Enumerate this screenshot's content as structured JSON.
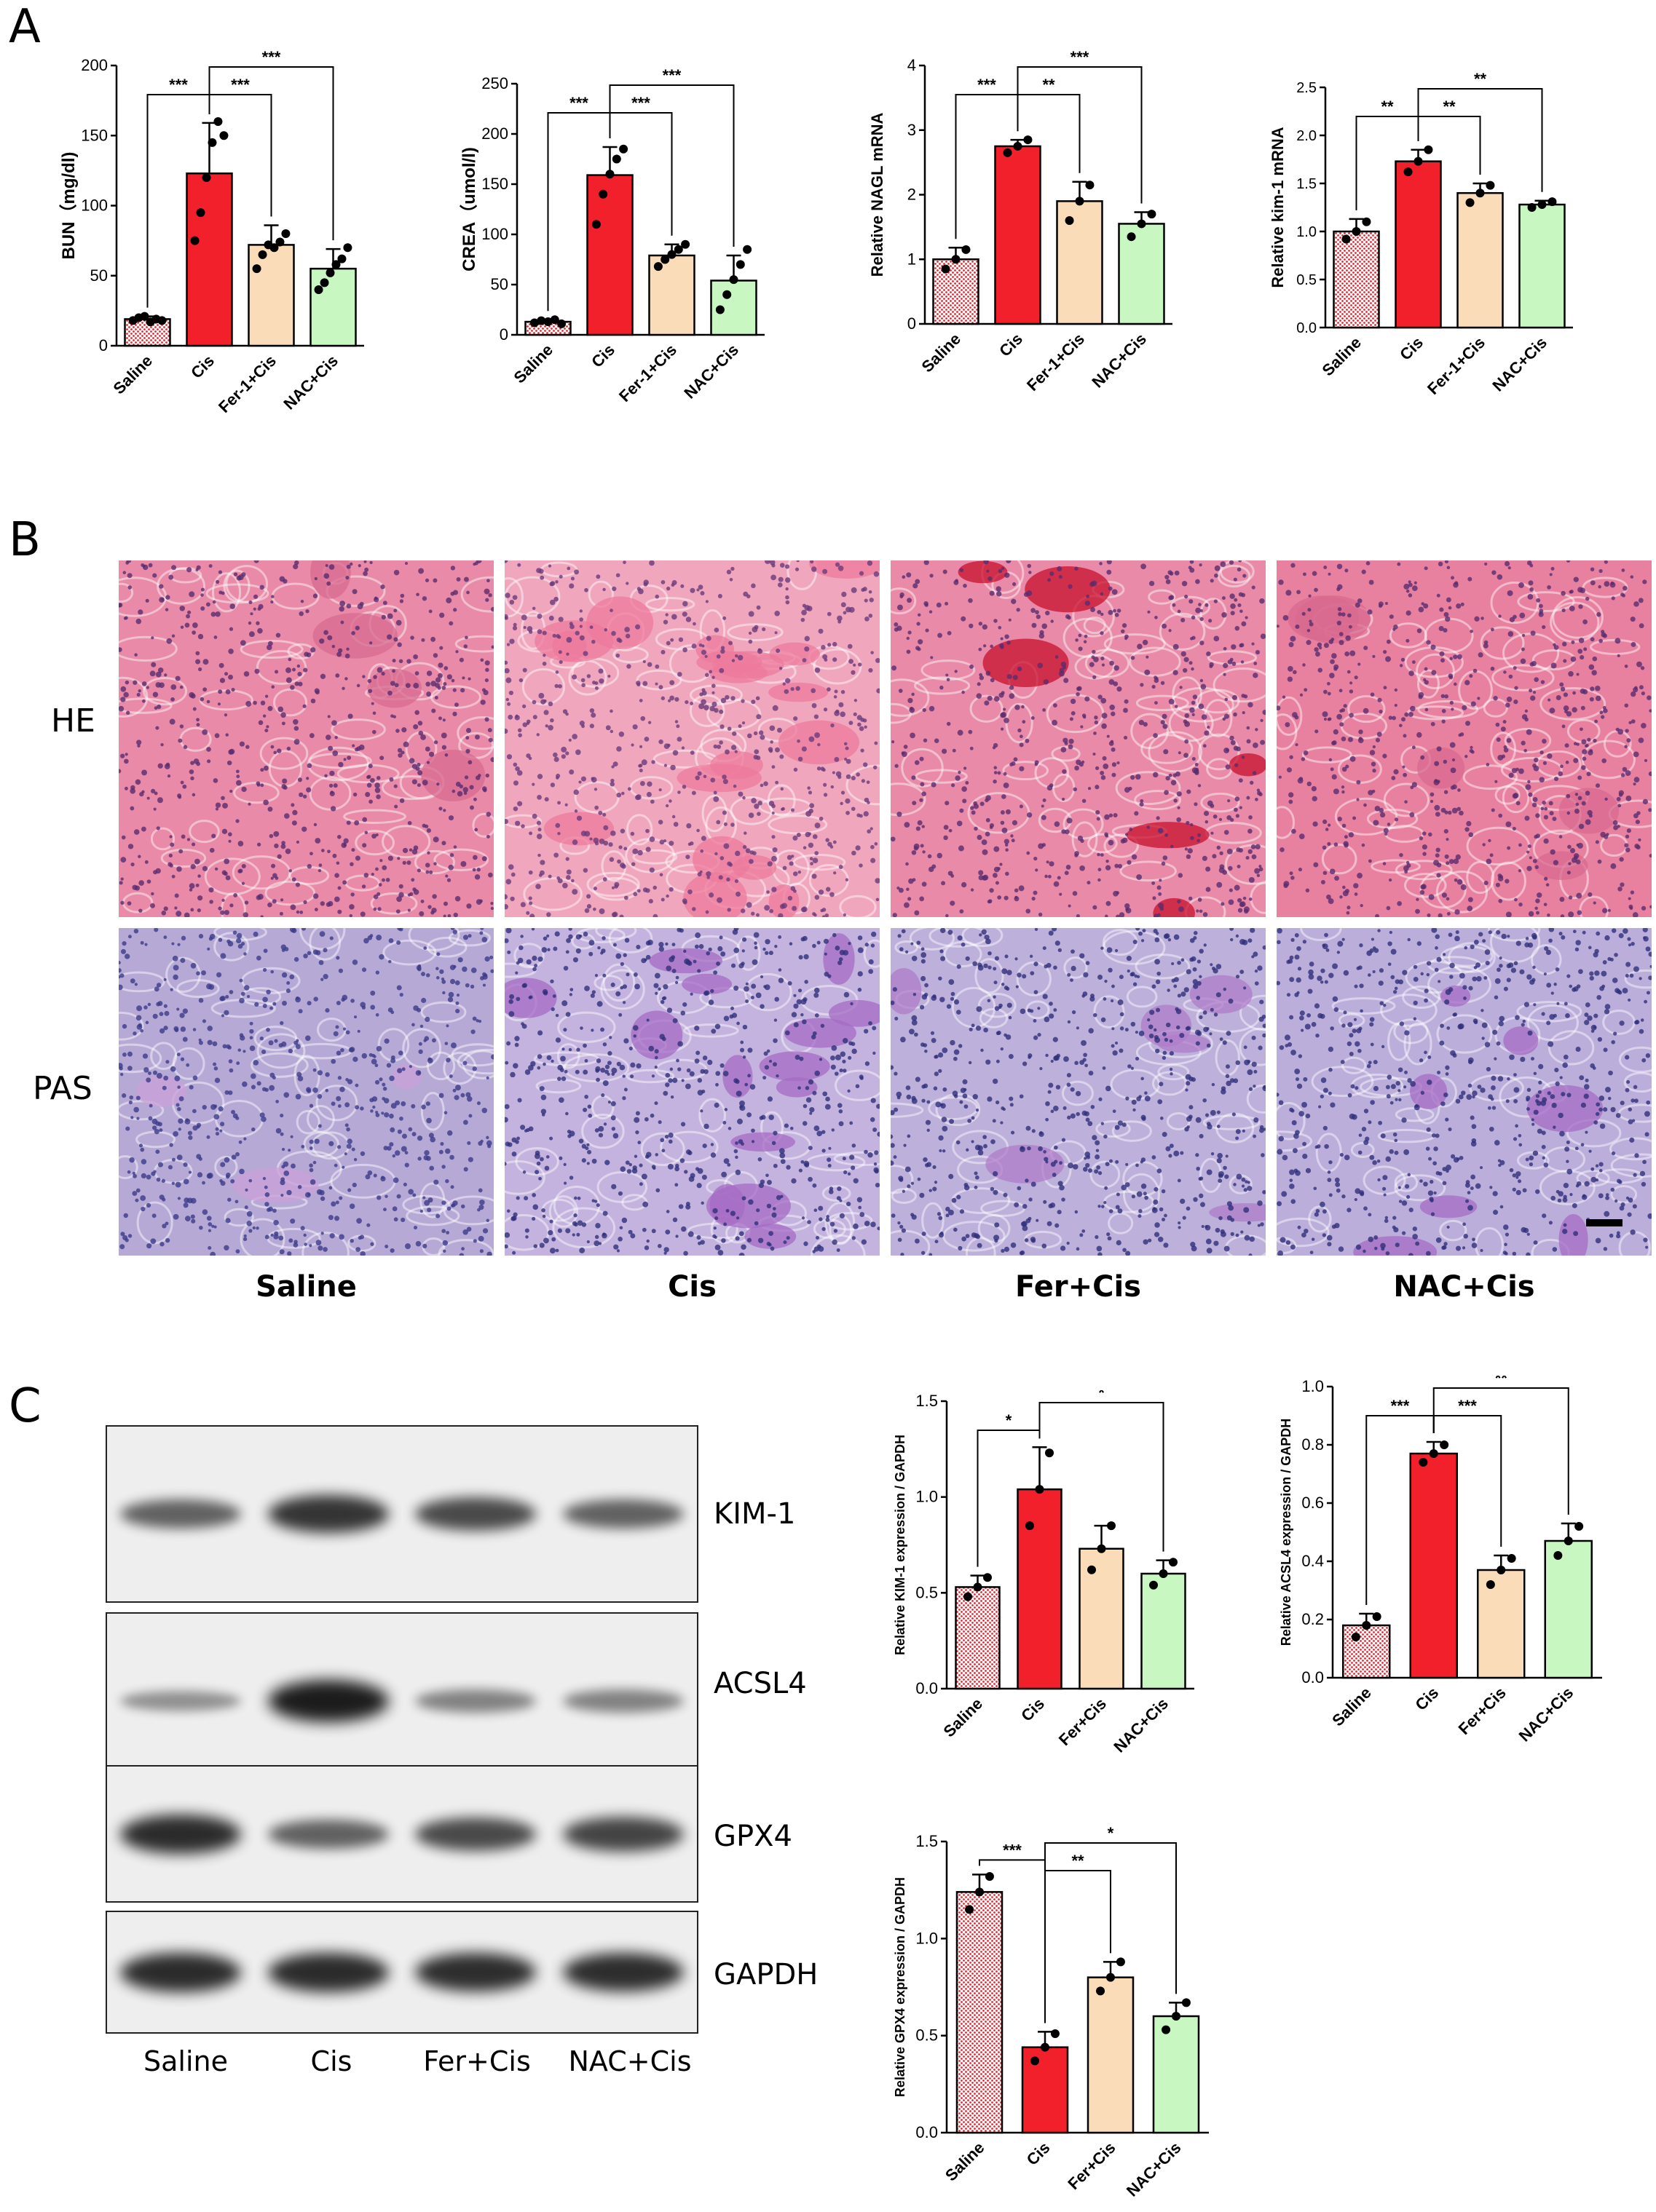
{
  "panels": {
    "a": "A",
    "b": "B",
    "c": "C"
  },
  "colors": {
    "saline": "#f4a9a9",
    "cis": "#f2202a",
    "fer": "#fbdcb8",
    "nac": "#c8f7c2",
    "he_tissue": "#e88aa8",
    "pas_tissue": "#b7a9d6"
  },
  "histology": {
    "rows": [
      "HE",
      "PAS"
    ],
    "columns": [
      "Saline",
      "Cis",
      "Fer+Cis",
      "NAC+Cis"
    ]
  },
  "blot": {
    "proteins": [
      "KIM-1",
      "ACSL4",
      "GPX4",
      "GAPDH"
    ],
    "lanes": [
      "Saline",
      "Cis",
      "Fer+Cis",
      "NAC+Cis"
    ],
    "intensity": [
      [
        0.55,
        0.85,
        0.7,
        0.55
      ],
      [
        0.25,
        1.0,
        0.35,
        0.35
      ],
      [
        0.9,
        0.55,
        0.7,
        0.75
      ],
      [
        0.9,
        0.9,
        0.88,
        0.88
      ]
    ]
  },
  "chart_data": [
    {
      "type": "bar",
      "categories": [
        "Saline",
        "Cis",
        "Fer-1+Cis",
        "NAC+Cis"
      ],
      "values": [
        19,
        123,
        72,
        55
      ],
      "errors": [
        2,
        36,
        14,
        14
      ],
      "points": [
        [
          18,
          20,
          21,
          17,
          19,
          18
        ],
        [
          75,
          95,
          120,
          145,
          160,
          150
        ],
        [
          55,
          65,
          72,
          70,
          74,
          80
        ],
        [
          40,
          45,
          52,
          58,
          62,
          70
        ]
      ],
      "ylabel": "BUN（mg/dl)",
      "ylim": [
        0,
        200
      ],
      "yticks": [
        0,
        50,
        100,
        150,
        200
      ],
      "sig": [
        {
          "from": 0,
          "to": 1,
          "label": "***"
        },
        {
          "from": 1,
          "to": 2,
          "label": "***"
        },
        {
          "from": 1,
          "to": 3,
          "label": "***"
        }
      ]
    },
    {
      "type": "bar",
      "categories": [
        "Saline",
        "Cis",
        "Fer-1+Cis",
        "NAC+Cis"
      ],
      "values": [
        13,
        159,
        79,
        54
      ],
      "errors": [
        2,
        28,
        11,
        25
      ],
      "points": [
        [
          12,
          14,
          13,
          15,
          11
        ],
        [
          110,
          140,
          160,
          175,
          185
        ],
        [
          68,
          75,
          80,
          85,
          90
        ],
        [
          25,
          40,
          55,
          70,
          85
        ]
      ],
      "ylabel": "CREA（umol/l)",
      "ylim": [
        0,
        250
      ],
      "yticks": [
        0,
        50,
        100,
        150,
        200,
        250
      ],
      "sig": [
        {
          "from": 0,
          "to": 1,
          "label": "***"
        },
        {
          "from": 1,
          "to": 2,
          "label": "***"
        },
        {
          "from": 1,
          "to": 3,
          "label": "***"
        }
      ]
    },
    {
      "type": "bar",
      "categories": [
        "Saline",
        "Cis",
        "Fer-1+Cis",
        "NAC+Cis"
      ],
      "values": [
        1.0,
        2.75,
        1.9,
        1.55
      ],
      "errors": [
        0.18,
        0.1,
        0.3,
        0.18
      ],
      "points": [
        [
          0.85,
          1.0,
          1.15
        ],
        [
          2.65,
          2.75,
          2.85
        ],
        [
          1.6,
          1.9,
          2.15
        ],
        [
          1.35,
          1.55,
          1.7
        ]
      ],
      "ylabel": "Relative NAGL mRNA",
      "ylim": [
        0,
        4
      ],
      "yticks": [
        0,
        1,
        2,
        3,
        4
      ],
      "sig": [
        {
          "from": 0,
          "to": 1,
          "label": "***"
        },
        {
          "from": 1,
          "to": 2,
          "label": "**"
        },
        {
          "from": 1,
          "to": 3,
          "label": "***"
        }
      ]
    },
    {
      "type": "bar",
      "categories": [
        "Saline",
        "Cis",
        "Fer-1+Cis",
        "NAC+Cis"
      ],
      "values": [
        1.0,
        1.73,
        1.4,
        1.28
      ],
      "errors": [
        0.13,
        0.12,
        0.1,
        0.04
      ],
      "points": [
        [
          0.92,
          1.0,
          1.1
        ],
        [
          1.62,
          1.73,
          1.85
        ],
        [
          1.3,
          1.4,
          1.48
        ],
        [
          1.25,
          1.28,
          1.31
        ]
      ],
      "ylabel": "Relative kim-1 mRNA",
      "ylim": [
        0,
        2.5
      ],
      "yticks": [
        "0.0",
        "0.5",
        "1.0",
        "1.5",
        "2.0",
        "2.5"
      ],
      "sig": [
        {
          "from": 0,
          "to": 1,
          "label": "**"
        },
        {
          "from": 1,
          "to": 2,
          "label": "**"
        },
        {
          "from": 1,
          "to": 3,
          "label": "**"
        }
      ]
    },
    {
      "type": "bar",
      "categories": [
        "Saline",
        "Cis",
        "Fer+Cis",
        "NAC+Cis"
      ],
      "values": [
        0.53,
        1.04,
        0.73,
        0.6
      ],
      "errors": [
        0.06,
        0.22,
        0.12,
        0.07
      ],
      "points": [
        [
          0.48,
          0.53,
          0.58
        ],
        [
          0.85,
          1.04,
          1.23
        ],
        [
          0.62,
          0.73,
          0.85
        ],
        [
          0.54,
          0.6,
          0.66
        ]
      ],
      "ylabel": "Relative KIM-1 expression / GAPDH",
      "ylim": [
        0,
        1.5
      ],
      "yticks": [
        "0.0",
        "0.5",
        "1.0",
        "1.5"
      ],
      "sig": [
        {
          "from": 0,
          "to": 1,
          "label": "*"
        },
        {
          "from": 1,
          "to": 3,
          "label": "*"
        }
      ]
    },
    {
      "type": "bar",
      "categories": [
        "Saline",
        "Cis",
        "Fer+Cis",
        "NAC+Cis"
      ],
      "values": [
        0.18,
        0.77,
        0.37,
        0.47
      ],
      "errors": [
        0.04,
        0.04,
        0.05,
        0.06
      ],
      "points": [
        [
          0.14,
          0.18,
          0.21
        ],
        [
          0.74,
          0.77,
          0.8
        ],
        [
          0.32,
          0.37,
          0.41
        ],
        [
          0.42,
          0.47,
          0.52
        ]
      ],
      "ylabel": "Relative ACSL4 expression / GAPDH",
      "ylim": [
        0,
        1.0
      ],
      "yticks": [
        "0.0",
        "0.2",
        "0.4",
        "0.6",
        "0.8",
        "1.0"
      ],
      "sig": [
        {
          "from": 0,
          "to": 1,
          "label": "***"
        },
        {
          "from": 1,
          "to": 2,
          "label": "***"
        },
        {
          "from": 1,
          "to": 3,
          "label": "**"
        }
      ]
    },
    {
      "type": "bar",
      "categories": [
        "Saline",
        "Cis",
        "Fer+Cis",
        "NAC+Cis"
      ],
      "values": [
        1.24,
        0.44,
        0.8,
        0.6
      ],
      "errors": [
        0.09,
        0.08,
        0.08,
        0.07
      ],
      "points": [
        [
          1.15,
          1.24,
          1.32
        ],
        [
          0.37,
          0.44,
          0.51
        ],
        [
          0.73,
          0.8,
          0.88
        ],
        [
          0.53,
          0.6,
          0.67
        ]
      ],
      "ylabel": "Relative GPX4 expression / GAPDH",
      "ylim": [
        0,
        1.5
      ],
      "yticks": [
        "0.0",
        "0.5",
        "1.0",
        "1.5"
      ],
      "sig": [
        {
          "from": 0,
          "to": 1,
          "label": "***"
        },
        {
          "from": 1,
          "to": 3,
          "label": "*"
        },
        {
          "from": 1,
          "to": 2,
          "label": "**"
        }
      ]
    }
  ]
}
